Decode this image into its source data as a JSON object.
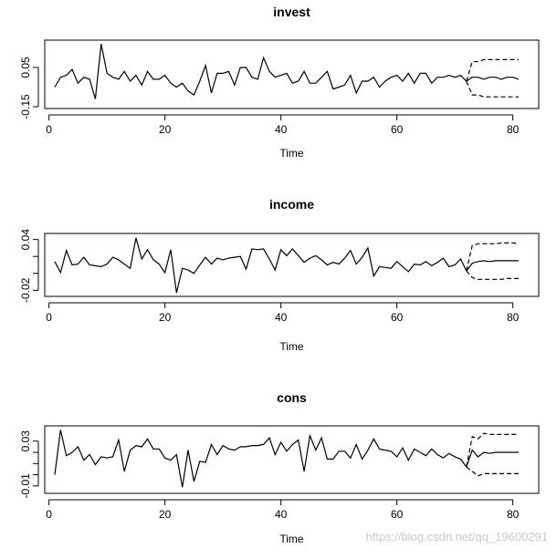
{
  "watermark": "https://blog.csdn.net/qq_19600291",
  "chart_data": [
    {
      "type": "line",
      "title": "invest",
      "xlabel": "Time",
      "ylabel": "",
      "xlim": [
        1,
        81
      ],
      "ylim": [
        -0.15,
        0.18
      ],
      "xticks": [
        0,
        20,
        40,
        60,
        80
      ],
      "yticks": [
        -0.15,
        0.05
      ],
      "yticklabels": [
        "-0.15",
        "0.05"
      ],
      "series": [
        {
          "style": "solid",
          "x_start": 1,
          "values": [
            -0.05,
            0.0,
            0.01,
            0.04,
            -0.03,
            0.0,
            -0.01,
            -0.11,
            0.17,
            0.02,
            0.0,
            -0.01,
            0.03,
            -0.02,
            0.01,
            -0.04,
            0.03,
            -0.01,
            -0.01,
            0.01,
            -0.03,
            -0.05,
            -0.03,
            -0.07,
            -0.09,
            -0.02,
            0.06,
            -0.08,
            0.02,
            0.02,
            0.03,
            -0.04,
            0.05,
            0.05,
            0.0,
            -0.01,
            0.1,
            0.03,
            0.0,
            0.01,
            0.02,
            -0.03,
            -0.02,
            0.03,
            -0.03,
            -0.03,
            0.0,
            0.03,
            -0.06,
            -0.05,
            -0.04,
            0.01,
            -0.08,
            -0.02,
            -0.02,
            0.0,
            -0.05,
            -0.02,
            0.0,
            0.01,
            -0.02,
            0.02,
            -0.03,
            0.02,
            0.02,
            -0.03,
            0.0,
            0.0,
            0.01,
            0.0,
            0.01,
            -0.02
          ]
        },
        {
          "style": "solid",
          "x_start": 72,
          "values": [
            -0.02,
            0.0,
            0.0,
            -0.01,
            0.0,
            0.0,
            -0.01,
            0.0,
            0.0,
            -0.01
          ]
        },
        {
          "style": "dashed",
          "x_start": 72,
          "values": [
            -0.02,
            0.08,
            0.08,
            0.09,
            0.09,
            0.09,
            0.09,
            0.09,
            0.09,
            0.09
          ]
        },
        {
          "style": "dashed",
          "x_start": 72,
          "values": [
            -0.02,
            -0.09,
            -0.09,
            -0.1,
            -0.1,
            -0.1,
            -0.1,
            -0.1,
            -0.1,
            -0.1
          ]
        }
      ]
    },
    {
      "type": "line",
      "title": "income",
      "xlabel": "Time",
      "ylabel": "",
      "xlim": [
        1,
        81
      ],
      "ylim": [
        -0.025,
        0.045
      ],
      "xticks": [
        0,
        20,
        40,
        60,
        80
      ],
      "yticks": [
        -0.02,
        0.0,
        0.02,
        0.04
      ],
      "yticklabels": [
        "-0.02",
        "",
        "",
        "0.04"
      ],
      "series": [
        {
          "style": "solid",
          "x_start": 1,
          "values": [
            0.014,
            0.001,
            0.027,
            0.01,
            0.011,
            0.019,
            0.01,
            0.009,
            0.008,
            0.011,
            0.019,
            0.016,
            0.011,
            0.006,
            0.042,
            0.017,
            0.028,
            0.016,
            0.011,
            0.001,
            0.028,
            -0.023,
            0.006,
            0.004,
            0.0,
            0.01,
            0.019,
            0.011,
            0.018,
            0.016,
            0.018,
            0.019,
            0.02,
            0.005,
            0.029,
            0.028,
            0.029,
            0.017,
            0.004,
            0.028,
            0.021,
            0.029,
            0.021,
            0.013,
            0.018,
            0.021,
            0.016,
            0.01,
            0.013,
            0.011,
            0.018,
            0.027,
            0.011,
            0.019,
            0.03,
            -0.003,
            0.008,
            0.007,
            0.006,
            0.014,
            0.008,
            0.002,
            0.011,
            0.01,
            0.014,
            0.009,
            0.013,
            0.018,
            0.008,
            0.01,
            0.017,
            0.003
          ]
        },
        {
          "style": "solid",
          "x_start": 72,
          "values": [
            0.003,
            0.012,
            0.014,
            0.015,
            0.014,
            0.015,
            0.015,
            0.015,
            0.015,
            0.015
          ]
        },
        {
          "style": "dashed",
          "x_start": 72,
          "values": [
            0.003,
            0.033,
            0.035,
            0.035,
            0.035,
            0.035,
            0.036,
            0.036,
            0.036,
            0.035
          ]
        },
        {
          "style": "dashed",
          "x_start": 72,
          "values": [
            0.003,
            -0.005,
            -0.007,
            -0.007,
            -0.007,
            -0.007,
            -0.007,
            -0.006,
            -0.006,
            -0.006
          ]
        }
      ]
    },
    {
      "type": "line",
      "title": "cons",
      "xlabel": "Time",
      "ylabel": "",
      "xlim": [
        1,
        81
      ],
      "ylim": [
        -0.015,
        0.042
      ],
      "xticks": [
        0,
        20,
        40,
        60,
        80
      ],
      "yticks": [
        -0.01,
        0.0,
        0.01,
        0.02,
        0.03
      ],
      "yticklabels": [
        "-0.01",
        "",
        "",
        "",
        "0.03"
      ],
      "series": [
        {
          "style": "solid",
          "x_start": 1,
          "values": [
            0.0,
            0.04,
            0.017,
            0.02,
            0.025,
            0.013,
            0.018,
            0.009,
            0.016,
            0.015,
            0.016,
            0.031,
            0.003,
            0.022,
            0.026,
            0.025,
            0.032,
            0.023,
            0.023,
            0.015,
            0.013,
            0.018,
            -0.011,
            0.022,
            -0.006,
            0.012,
            0.011,
            0.027,
            0.018,
            0.026,
            0.023,
            0.022,
            0.025,
            0.025,
            0.026,
            0.026,
            0.027,
            0.033,
            0.018,
            0.029,
            0.021,
            0.027,
            0.031,
            0.003,
            0.035,
            0.022,
            0.033,
            0.014,
            0.014,
            0.021,
            0.021,
            0.015,
            0.027,
            0.014,
            0.022,
            0.032,
            0.023,
            0.022,
            0.021,
            0.016,
            0.024,
            0.013,
            0.023,
            0.02,
            0.017,
            0.023,
            0.018,
            0.015,
            0.019,
            0.016,
            0.014,
            0.007
          ]
        },
        {
          "style": "solid",
          "x_start": 72,
          "values": [
            0.007,
            0.022,
            0.016,
            0.02,
            0.019,
            0.02,
            0.02,
            0.02,
            0.02,
            0.02
          ]
        },
        {
          "style": "dashed",
          "x_start": 72,
          "values": [
            0.007,
            0.034,
            0.032,
            0.037,
            0.036,
            0.036,
            0.036,
            0.036,
            0.036,
            0.036
          ]
        },
        {
          "style": "dashed",
          "x_start": 72,
          "values": [
            0.007,
            0.003,
            -0.001,
            0.001,
            0.001,
            0.001,
            0.001,
            0.001,
            0.001,
            0.001
          ]
        }
      ]
    }
  ]
}
